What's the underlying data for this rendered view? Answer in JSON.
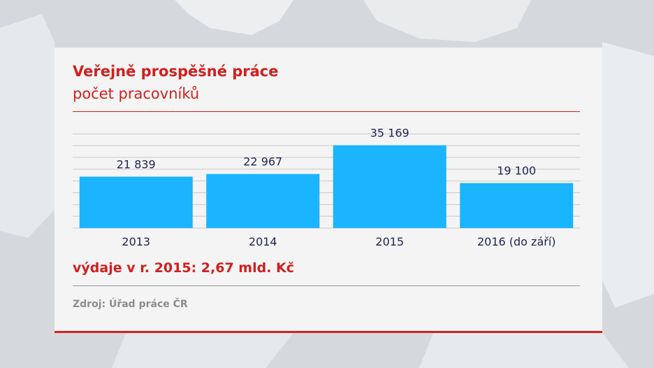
{
  "title": "Veřejně prospěšné práce",
  "subtitle": "počet pracovníků",
  "footnote": "výdaje v r. 2015: 2,67 mld. Kč",
  "source": "Zdroj: Úřad práce ČR",
  "colors": {
    "accent": "#d01f1e",
    "bar": "#1ab4ff",
    "value_label": "#1c2350",
    "grid": "#c8c8c8"
  },
  "chart_data": {
    "type": "bar",
    "title": "Veřejně prospěšné práce",
    "subtitle": "počet pracovníků",
    "categories": [
      "2013",
      "2014",
      "2015",
      "2016 (do září)"
    ],
    "values": [
      21839,
      22967,
      35169,
      19100
    ],
    "value_labels": [
      "21 839",
      "22 967",
      "35 169",
      "19 100"
    ],
    "xlabel": "",
    "ylabel": "",
    "ylim": [
      0,
      41000
    ],
    "grid": true,
    "legend": "none"
  }
}
